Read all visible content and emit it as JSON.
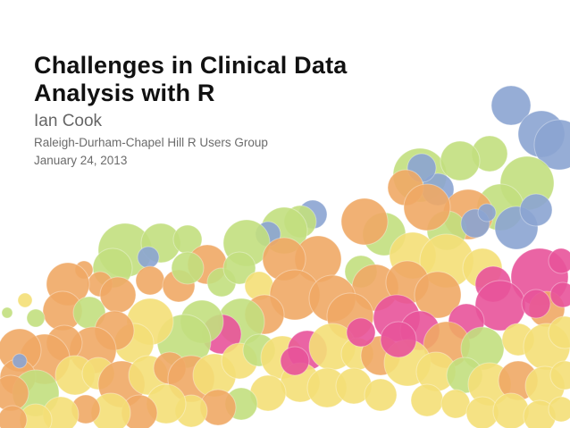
{
  "slide": {
    "title_line1": "Challenges in Clinical Data",
    "title_line2": "Analysis with R",
    "author": "Ian Cook",
    "group": "Raleigh-Durham-Chapel Hill R Users Group",
    "date": "January 24, 2013"
  },
  "palette": {
    "background": "#ffffff",
    "title": "#111111",
    "subtitle": "#666666",
    "green": "#c2df7e",
    "orange": "#f0a865",
    "yellow": "#f4df77",
    "pink": "#e8539a",
    "blue": "#8ba4d2"
  }
}
